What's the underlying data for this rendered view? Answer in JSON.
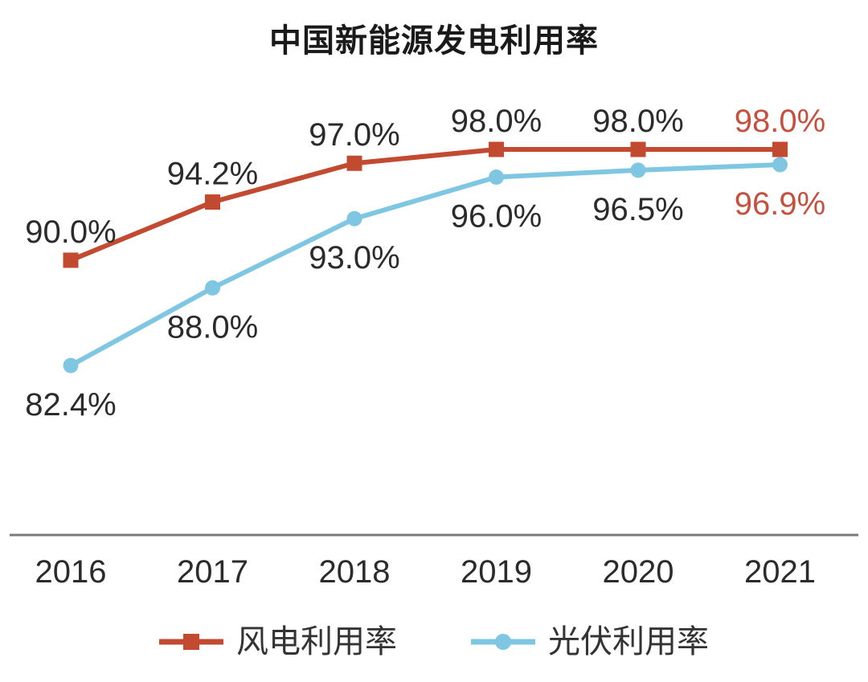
{
  "title": "中国新能源发电利用率",
  "chart_data": {
    "type": "line",
    "title": "中国新能源发电利用率",
    "categories": [
      "2016",
      "2017",
      "2018",
      "2019",
      "2020",
      "2021"
    ],
    "series": [
      {
        "name": "风电利用率",
        "marker": "square",
        "color": "#c24a31",
        "values": [
          90.0,
          94.2,
          97.0,
          98.0,
          98.0,
          98.0
        ],
        "data_labels": [
          "90.0%",
          "94.2%",
          "97.0%",
          "98.0%",
          "98.0%",
          "98.0%"
        ],
        "label_position": "above"
      },
      {
        "name": "光伏利用率",
        "marker": "circle",
        "color": "#7fc6e2",
        "values": [
          82.4,
          88.0,
          93.0,
          96.0,
          96.5,
          96.9
        ],
        "data_labels": [
          "82.4%",
          "88.0%",
          "93.0%",
          "96.0%",
          "96.5%",
          "96.9%"
        ],
        "label_position": "below"
      }
    ],
    "data_label_color": "#2b2b2b",
    "last_point_label_color": "#c6503e",
    "axis_line_color": "#7a7a7a",
    "tick_label_color": "#2b2b2b",
    "background": "#ffffff",
    "ylim": [
      80,
      100
    ],
    "grid": false,
    "legend_position": "bottom",
    "xlabel": "",
    "ylabel": ""
  }
}
